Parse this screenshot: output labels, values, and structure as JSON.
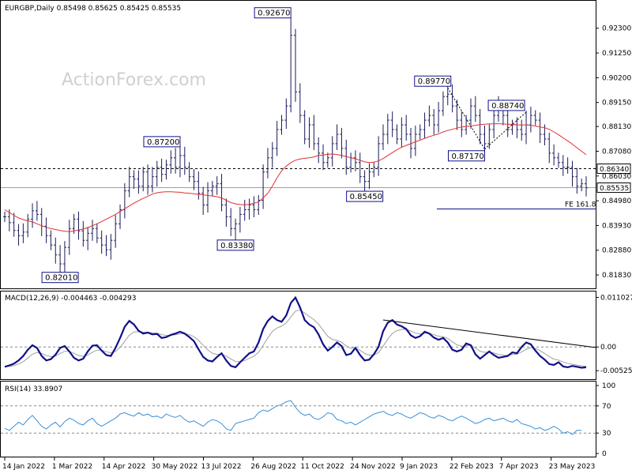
{
  "chart_data": [
    {
      "type": "candlestick",
      "header": "EURGBP,Daily  0.85498 0.85625 0.85425 0.85535",
      "watermark": "ActionForex.com",
      "ylim": [
        0.8143,
        0.9323
      ],
      "y_ticks": [
        {
          "value": 0.923,
          "label": "0.92300"
        },
        {
          "value": 0.9125,
          "label": "0.91250"
        },
        {
          "value": 0.902,
          "label": "0.90200"
        },
        {
          "value": 0.8915,
          "label": "0.89150"
        },
        {
          "value": 0.8813,
          "label": "0.88130"
        },
        {
          "value": 0.8708,
          "label": "0.87080"
        },
        {
          "value": 0.8603,
          "label": "0.86030"
        },
        {
          "value": 0.8498,
          "label": "0.84980"
        },
        {
          "value": 0.8393,
          "label": "0.83930"
        },
        {
          "value": 0.8288,
          "label": "0.82880"
        },
        {
          "value": 0.8183,
          "label": "0.81830"
        }
      ],
      "level_lines": [
        {
          "value": 0.8634,
          "label": "0.86340",
          "style": "dashed"
        },
        {
          "value": 0.85535,
          "label": "0.85535",
          "style": "solid-gray"
        }
      ],
      "fe_line": {
        "value": 0.8463,
        "label": "FE 161.8"
      },
      "annotations": [
        {
          "label": "0.92670",
          "value": 0.9267,
          "index": 62
        },
        {
          "label": "0.87200",
          "value": 0.872,
          "index": 38
        },
        {
          "label": "0.82010",
          "value": 0.8201,
          "index": 12
        },
        {
          "label": "0.83380",
          "value": 0.8338,
          "index": 50
        },
        {
          "label": "0.85450",
          "value": 0.8545,
          "index": 78
        },
        {
          "label": "0.89770",
          "value": 0.8977,
          "index": 96
        },
        {
          "label": "0.87170",
          "value": 0.8717,
          "index": 104
        },
        {
          "label": "0.88740",
          "value": 0.8874,
          "index": 113
        }
      ],
      "close": [
        0.843,
        0.8405,
        0.8372,
        0.835,
        0.8365,
        0.842,
        0.8455,
        0.844,
        0.839,
        0.835,
        0.831,
        0.8268,
        0.823,
        0.83,
        0.838,
        0.842,
        0.837,
        0.833,
        0.836,
        0.838,
        0.834,
        0.831,
        0.829,
        0.833,
        0.84,
        0.846,
        0.854,
        0.86,
        0.859,
        0.856,
        0.862,
        0.856,
        0.86,
        0.864,
        0.861,
        0.865,
        0.868,
        0.864,
        0.869,
        0.864,
        0.86,
        0.858,
        0.853,
        0.848,
        0.854,
        0.856,
        0.857,
        0.848,
        0.843,
        0.838,
        0.84,
        0.844,
        0.846,
        0.848,
        0.846,
        0.85,
        0.862,
        0.868,
        0.872,
        0.88,
        0.884,
        0.89,
        0.92,
        0.896,
        0.886,
        0.876,
        0.882,
        0.874,
        0.87,
        0.866,
        0.868,
        0.874,
        0.878,
        0.872,
        0.864,
        0.868,
        0.866,
        0.86,
        0.858,
        0.862,
        0.864,
        0.874,
        0.878,
        0.884,
        0.88,
        0.876,
        0.882,
        0.878,
        0.872,
        0.878,
        0.88,
        0.884,
        0.886,
        0.882,
        0.888,
        0.894,
        0.895,
        0.89,
        0.884,
        0.88,
        0.884,
        0.89,
        0.886,
        0.878,
        0.874,
        0.88,
        0.886,
        0.89,
        0.886,
        0.88,
        0.882,
        0.88,
        0.878,
        0.882,
        0.886,
        0.884,
        0.878,
        0.876,
        0.87,
        0.868,
        0.866,
        0.864,
        0.864,
        0.86,
        0.856,
        0.857,
        0.8553
      ],
      "sma": [
        0.846,
        0.8448,
        0.8436,
        0.8425,
        0.8418,
        0.8413,
        0.8408,
        0.84,
        0.8392,
        0.8385,
        0.838,
        0.8376,
        0.8372,
        0.8369,
        0.8367,
        0.837,
        0.8374,
        0.8378,
        0.8384,
        0.8392,
        0.84,
        0.841,
        0.842,
        0.843,
        0.844,
        0.8452,
        0.8464,
        0.8476,
        0.8488,
        0.8498,
        0.8508,
        0.8517,
        0.8526,
        0.8532,
        0.8535,
        0.8536,
        0.8536,
        0.8535,
        0.8534,
        0.8531,
        0.853,
        0.8528,
        0.8525,
        0.8523,
        0.852,
        0.8518,
        0.8515,
        0.851,
        0.85,
        0.849,
        0.8485,
        0.8482,
        0.8481,
        0.8483,
        0.8487,
        0.8493,
        0.851,
        0.853,
        0.856,
        0.8595,
        0.8625,
        0.8645,
        0.866,
        0.867,
        0.8675,
        0.8678,
        0.868,
        0.8684,
        0.869,
        0.8692,
        0.8695,
        0.8696,
        0.8694,
        0.869,
        0.8686,
        0.868,
        0.8676,
        0.867,
        0.8663,
        0.866,
        0.8662,
        0.8667,
        0.8677,
        0.869,
        0.8702,
        0.8715,
        0.8725,
        0.8733,
        0.874,
        0.8748,
        0.8755,
        0.8763,
        0.877,
        0.8776,
        0.8782,
        0.879,
        0.8796,
        0.8801,
        0.8806,
        0.8811,
        0.8813,
        0.8815,
        0.8818,
        0.8821,
        0.8823,
        0.8824,
        0.8825,
        0.8825,
        0.8824,
        0.8823,
        0.8822,
        0.882,
        0.8819,
        0.882,
        0.8818,
        0.8815,
        0.8811,
        0.8808,
        0.8801,
        0.879,
        0.8778,
        0.8765,
        0.8752,
        0.8738,
        0.8723,
        0.8708,
        0.8693
      ]
    },
    {
      "type": "line",
      "name": "MACD",
      "header": "MACD(12,26,9) -0.004463 -0.004293",
      "ylim": [
        -0.0068,
        0.0118
      ],
      "y_ticks": [
        {
          "value": 0.011027,
          "label": "0.011027"
        },
        {
          "value": 0.0,
          "label": "0.00"
        },
        {
          "value": -0.005253,
          "label": "-0.005253"
        }
      ],
      "macd": [
        -0.0044,
        -0.0041,
        -0.0037,
        -0.003,
        -0.002,
        -0.0006,
        0.0004,
        -0.0002,
        -0.002,
        -0.003,
        -0.0027,
        -0.0017,
        -0.0002,
        0.0002,
        -0.001,
        -0.0024,
        -0.003,
        -0.0026,
        -0.001,
        0.0003,
        0.0004,
        -0.0008,
        -0.0018,
        -0.002,
        -0.0002,
        0.002,
        0.0045,
        0.0058,
        0.005,
        0.0036,
        0.003,
        0.0032,
        0.0028,
        0.0029,
        0.002,
        0.0022,
        0.0027,
        0.003,
        0.0034,
        0.003,
        0.0022,
        0.0013,
        -0.0005,
        -0.0022,
        -0.003,
        -0.0032,
        -0.0022,
        -0.0014,
        -0.003,
        -0.0042,
        -0.0045,
        -0.0034,
        -0.0024,
        -0.0014,
        -0.001,
        0.001,
        0.004,
        0.0058,
        0.0068,
        0.006,
        0.0056,
        0.007,
        0.0098,
        0.011,
        0.0088,
        0.006,
        0.005,
        0.0044,
        0.0028,
        0.0006,
        -0.0008,
        0.0,
        0.001,
        0.0002,
        -0.0018,
        -0.0015,
        -0.0002,
        -0.0018,
        -0.003,
        -0.0028,
        -0.0016,
        0.0,
        0.0035,
        0.0054,
        0.006,
        0.005,
        0.0046,
        0.004,
        0.0026,
        0.002,
        0.0024,
        0.0034,
        0.003,
        0.0021,
        0.0016,
        0.002,
        0.001,
        -0.0006,
        -0.001,
        -0.0006,
        0.0008,
        0.0004,
        -0.0016,
        -0.0026,
        -0.0018,
        -0.001,
        -0.0018,
        -0.0024,
        -0.0022,
        -0.002,
        -0.0012,
        -0.0014,
        0.0,
        0.001,
        0.0006,
        -0.0008,
        -0.002,
        -0.0028,
        -0.0038,
        -0.004,
        -0.0034,
        -0.0043,
        -0.0045,
        -0.0042,
        -0.0044,
        -0.0046,
        -0.0045
      ]
    },
    {
      "type": "line",
      "name": "RSI",
      "header": "RSI(14) 33.8907",
      "ylim": [
        0,
        100
      ],
      "y_ticks": [
        {
          "value": 100,
          "label": "100"
        },
        {
          "value": 70,
          "label": "70"
        },
        {
          "value": 30,
          "label": "30"
        },
        {
          "value": 0,
          "label": "0"
        }
      ],
      "rsi": [
        37,
        34,
        40,
        46,
        42,
        50,
        56,
        48,
        40,
        36,
        42,
        46,
        39,
        47,
        52,
        49,
        44,
        42,
        48,
        52,
        44,
        40,
        44,
        48,
        52,
        58,
        60,
        57,
        55,
        60,
        56,
        58,
        54,
        55,
        52,
        58,
        55,
        53,
        56,
        50,
        46,
        48,
        44,
        40,
        46,
        50,
        48,
        44,
        36,
        34,
        44,
        46,
        48,
        50,
        52,
        60,
        64,
        62,
        66,
        70,
        72,
        76,
        78,
        68,
        60,
        56,
        58,
        52,
        50,
        54,
        60,
        58,
        50,
        48,
        44,
        46,
        42,
        46,
        50,
        54,
        58,
        60,
        62,
        58,
        56,
        60,
        58,
        54,
        52,
        56,
        60,
        58,
        54,
        52,
        56,
        54,
        50,
        48,
        52,
        55,
        52,
        48,
        44,
        46,
        50,
        52,
        48,
        50,
        52,
        48,
        46,
        50,
        44,
        42,
        40,
        36,
        38,
        34,
        36,
        40,
        36,
        30,
        32,
        28,
        34,
        33.9
      ]
    }
  ],
  "x_ticks": [
    {
      "label": "14 Jan 2022",
      "index": 0
    },
    {
      "label": "1 Mar 2022",
      "index": 8.5
    },
    {
      "label": "14 Apr 2022",
      "index": 17
    },
    {
      "label": "30 May 2022",
      "index": 25.5
    },
    {
      "label": "13 Jul 2022",
      "index": 34
    },
    {
      "label": "26 Aug 2022",
      "index": 42.5
    },
    {
      "label": "11 Oct 2022",
      "index": 51
    },
    {
      "label": "24 Nov 2022",
      "index": 59.5
    },
    {
      "label": "9 Jan 2023",
      "index": 68
    },
    {
      "label": "22 Feb 2023",
      "index": 76.5
    },
    {
      "label": "7 Apr 2023",
      "index": 85
    },
    {
      "label": "23 May 2023",
      "index": 93.5
    }
  ],
  "colors": {
    "price": "#1a1a5a",
    "sma": "#e03030",
    "macd": "#10108a",
    "signal": "#a0a0a0",
    "rsi": "#3a8fd8",
    "label_border": "#10108a"
  }
}
